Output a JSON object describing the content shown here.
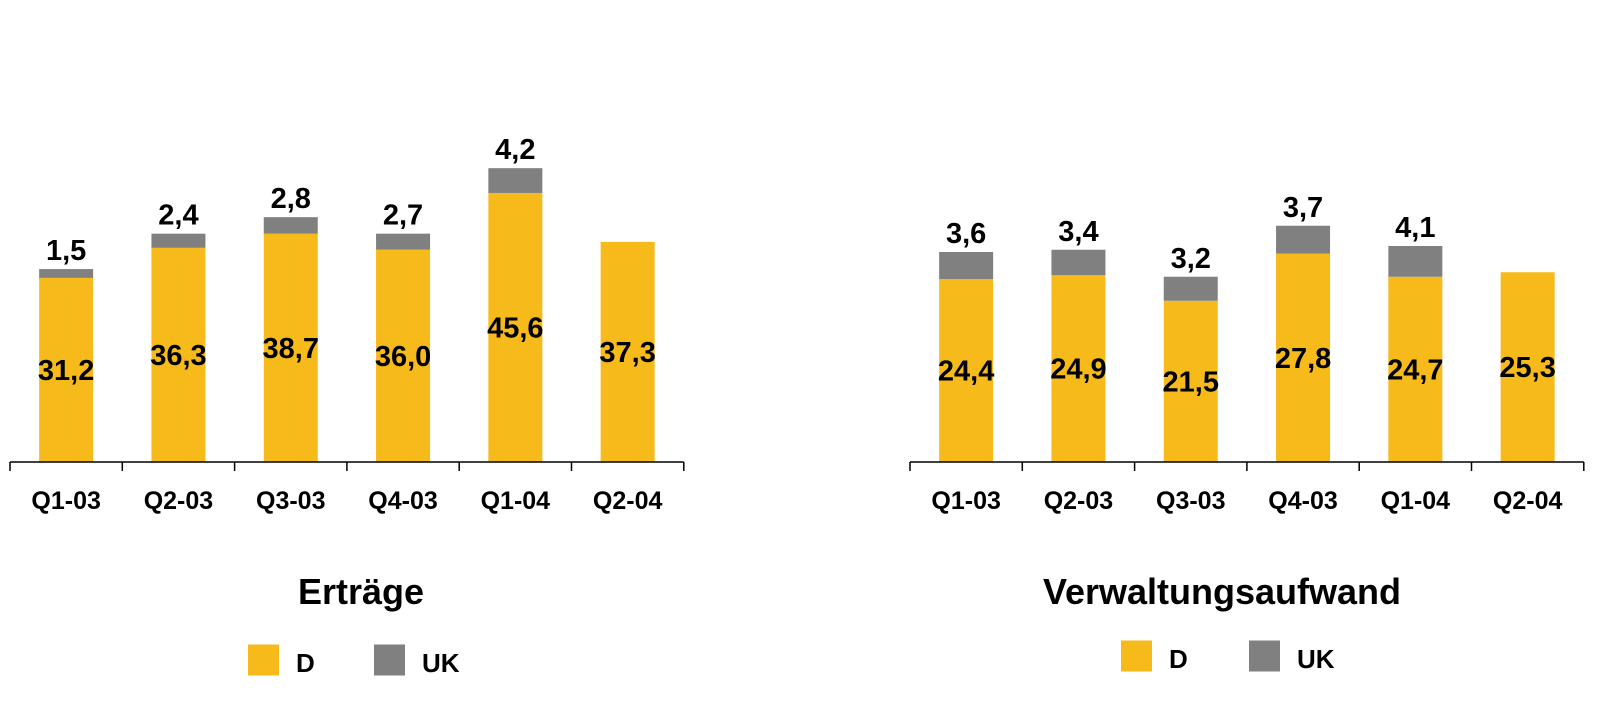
{
  "colors": {
    "D": "#F6BA1A",
    "UK": "#808080",
    "axis": "#000000"
  },
  "chart_data": [
    {
      "type": "bar",
      "stacked": true,
      "title": "Erträge",
      "categories": [
        "Q1-03",
        "Q2-03",
        "Q3-03",
        "Q4-03",
        "Q1-04",
        "Q2-04"
      ],
      "series": [
        {
          "name": "D",
          "values": [
            31.2,
            36.3,
            38.7,
            36.0,
            45.6,
            37.3
          ],
          "labels": [
            "31,2",
            "36,3",
            "38,7",
            "36,0",
            "45,6",
            "37,3"
          ]
        },
        {
          "name": "UK",
          "values": [
            1.5,
            2.4,
            2.8,
            2.7,
            4.2,
            null
          ],
          "labels": [
            "1,5",
            "2,4",
            "2,8",
            "2,7",
            "4,2",
            null
          ]
        }
      ],
      "legend": "bottom",
      "grid": false
    },
    {
      "type": "bar",
      "stacked": true,
      "title": "Verwaltungsaufwand",
      "categories": [
        "Q1-03",
        "Q2-03",
        "Q3-03",
        "Q4-03",
        "Q1-04",
        "Q2-04"
      ],
      "series": [
        {
          "name": "D",
          "values": [
            24.4,
            24.9,
            21.5,
            27.8,
            24.7,
            25.3
          ],
          "labels": [
            "24,4",
            "24,9",
            "21,5",
            "27,8",
            "24,7",
            "25,3"
          ]
        },
        {
          "name": "UK",
          "values": [
            3.6,
            3.4,
            3.2,
            3.7,
            4.1,
            null
          ],
          "labels": [
            "3,6",
            "3,4",
            "3,2",
            "3,7",
            "4,1",
            null
          ]
        }
      ],
      "legend": "bottom",
      "grid": false
    }
  ]
}
